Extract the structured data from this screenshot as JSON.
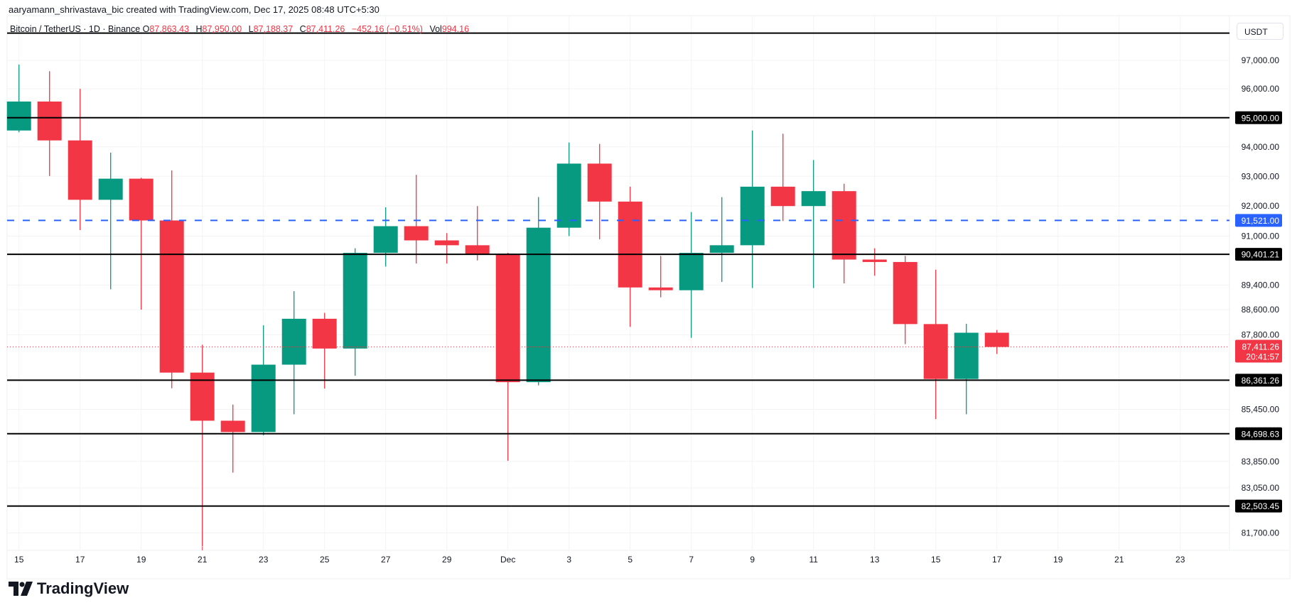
{
  "attribution": "aaryamann_shrivastava_bic created with TradingView.com, Dec 17, 2025 08:48 UTC+5:30",
  "legend": {
    "symbol": "Bitcoin / TetherUS · 1D · Binance",
    "o_label": "O",
    "o": "87,863.43",
    "h_label": "H",
    "h": "87,950.00",
    "l_label": "L",
    "l": "87,188.37",
    "c_label": "C",
    "c": "87,411.26",
    "change": "−452.16 (−0.51%)",
    "vol_label": "Vol",
    "vol": "994.16"
  },
  "currency": "USDT",
  "logo_text": "TradingView",
  "colors": {
    "up": "#089981",
    "down": "#f23645",
    "blue": "#2962ff",
    "level": "#000000"
  },
  "chart_data": {
    "type": "candlestick",
    "scale": "log",
    "ylim": [
      80800,
      98300
    ],
    "x_tick_labels": [
      {
        "i": 0,
        "t": "15"
      },
      {
        "i": 2,
        "t": "17"
      },
      {
        "i": 4,
        "t": "19"
      },
      {
        "i": 6,
        "t": "21"
      },
      {
        "i": 8,
        "t": "23"
      },
      {
        "i": 10,
        "t": "25"
      },
      {
        "i": 12,
        "t": "27"
      },
      {
        "i": 14,
        "t": "29"
      },
      {
        "i": 16,
        "t": "Dec"
      },
      {
        "i": 18,
        "t": "3"
      },
      {
        "i": 20,
        "t": "5"
      },
      {
        "i": 22,
        "t": "7"
      },
      {
        "i": 24,
        "t": "9"
      },
      {
        "i": 26,
        "t": "11"
      },
      {
        "i": 28,
        "t": "13"
      },
      {
        "i": 30,
        "t": "15"
      },
      {
        "i": 32,
        "t": "17"
      },
      {
        "i": 34,
        "t": "19"
      },
      {
        "i": 36,
        "t": "21"
      },
      {
        "i": 38,
        "t": "23"
      }
    ],
    "y_ticks": [
      {
        "v": 97000,
        "t": "97,000.00"
      },
      {
        "v": 96000,
        "t": "96,000.00"
      },
      {
        "v": 94000,
        "t": "94,000.00"
      },
      {
        "v": 93000,
        "t": "93,000.00"
      },
      {
        "v": 92000,
        "t": "92,000.00"
      },
      {
        "v": 91000,
        "t": "91,000.00"
      },
      {
        "v": 89400,
        "t": "89,400.00"
      },
      {
        "v": 88600,
        "t": "88,600.00"
      },
      {
        "v": 87800,
        "t": "87,800.00"
      },
      {
        "v": 85450,
        "t": "85,450.00"
      },
      {
        "v": 83850,
        "t": "83,850.00"
      },
      {
        "v": 83050,
        "t": "83,050.00"
      },
      {
        "v": 81700,
        "t": "81,700.00"
      }
    ],
    "levels": [
      {
        "v": 97965,
        "t": ""
      },
      {
        "v": 95000,
        "t": "95,000.00"
      },
      {
        "v": 90401.21,
        "t": "90,401.21"
      },
      {
        "v": 86361.26,
        "t": "86,361.26"
      },
      {
        "v": 84698.63,
        "t": "84,698.63"
      },
      {
        "v": 82503.45,
        "t": "82,503.45"
      }
    ],
    "dashed_level": {
      "v": 91521,
      "t": "91,521.00"
    },
    "last_price": {
      "v": 87411.26,
      "t": "87,411.26",
      "countdown": "20:41:57"
    },
    "candles": [
      {
        "d": "Nov 15",
        "o": 94560,
        "h": 96850,
        "l": 94500,
        "c": 95560
      },
      {
        "d": "Nov 16",
        "o": 95560,
        "h": 96620,
        "l": 93010,
        "c": 94220
      },
      {
        "d": "Nov 17",
        "o": 94220,
        "h": 96000,
        "l": 91200,
        "c": 92210
      },
      {
        "d": "Nov 18",
        "o": 92210,
        "h": 93800,
        "l": 89260,
        "c": 92920
      },
      {
        "d": "Nov 19",
        "o": 92920,
        "h": 92950,
        "l": 88600,
        "c": 91520
      },
      {
        "d": "Nov 20",
        "o": 91520,
        "h": 93200,
        "l": 86110,
        "c": 86600
      },
      {
        "d": "Nov 21",
        "o": 86600,
        "h": 87480,
        "l": 81300,
        "c": 85100
      },
      {
        "d": "Nov 22",
        "o": 85100,
        "h": 85600,
        "l": 83510,
        "c": 84750
      },
      {
        "d": "Nov 23",
        "o": 84750,
        "h": 88100,
        "l": 84650,
        "c": 86850
      },
      {
        "d": "Nov 24",
        "o": 86850,
        "h": 89200,
        "l": 85300,
        "c": 88310
      },
      {
        "d": "Nov 25",
        "o": 88310,
        "h": 88500,
        "l": 86100,
        "c": 87360
      },
      {
        "d": "Nov 26",
        "o": 87360,
        "h": 90600,
        "l": 86500,
        "c": 90450
      },
      {
        "d": "Nov 27",
        "o": 90450,
        "h": 91960,
        "l": 90000,
        "c": 91330
      },
      {
        "d": "Nov 28",
        "o": 91330,
        "h": 93050,
        "l": 90100,
        "c": 90860
      },
      {
        "d": "Nov 29",
        "o": 90860,
        "h": 91100,
        "l": 90100,
        "c": 90700
      },
      {
        "d": "Nov 30",
        "o": 90700,
        "h": 92000,
        "l": 90200,
        "c": 90400
      },
      {
        "d": "Dec 1",
        "o": 90400,
        "h": 90450,
        "l": 83870,
        "c": 86300
      },
      {
        "d": "Dec 2",
        "o": 86300,
        "h": 92300,
        "l": 86200,
        "c": 91280
      },
      {
        "d": "Dec 3",
        "o": 91280,
        "h": 94150,
        "l": 91000,
        "c": 93430
      },
      {
        "d": "Dec 4",
        "o": 93430,
        "h": 94100,
        "l": 90900,
        "c": 92150
      },
      {
        "d": "Dec 5",
        "o": 92150,
        "h": 92650,
        "l": 88050,
        "c": 89320
      },
      {
        "d": "Dec 6",
        "o": 89320,
        "h": 90350,
        "l": 89000,
        "c": 89230
      },
      {
        "d": "Dec 7",
        "o": 89230,
        "h": 91800,
        "l": 87700,
        "c": 90450
      },
      {
        "d": "Dec 8",
        "o": 90450,
        "h": 92300,
        "l": 89500,
        "c": 90700
      },
      {
        "d": "Dec 9",
        "o": 90700,
        "h": 94560,
        "l": 89300,
        "c": 92650
      },
      {
        "d": "Dec 10",
        "o": 92650,
        "h": 94450,
        "l": 91500,
        "c": 92000
      },
      {
        "d": "Dec 11",
        "o": 92000,
        "h": 93550,
        "l": 89300,
        "c": 92500
      },
      {
        "d": "Dec 12",
        "o": 92500,
        "h": 92750,
        "l": 89450,
        "c": 90230
      },
      {
        "d": "Dec 13",
        "o": 90230,
        "h": 90600,
        "l": 89700,
        "c": 90150
      },
      {
        "d": "Dec 14",
        "o": 90150,
        "h": 90350,
        "l": 87500,
        "c": 88140
      },
      {
        "d": "Dec 15",
        "o": 88140,
        "h": 89900,
        "l": 85150,
        "c": 86400
      },
      {
        "d": "Dec 16",
        "o": 86400,
        "h": 88150,
        "l": 85300,
        "c": 87863.43
      },
      {
        "d": "Dec 17",
        "o": 87863.43,
        "h": 87950,
        "l": 87188.37,
        "c": 87411.26
      }
    ]
  }
}
